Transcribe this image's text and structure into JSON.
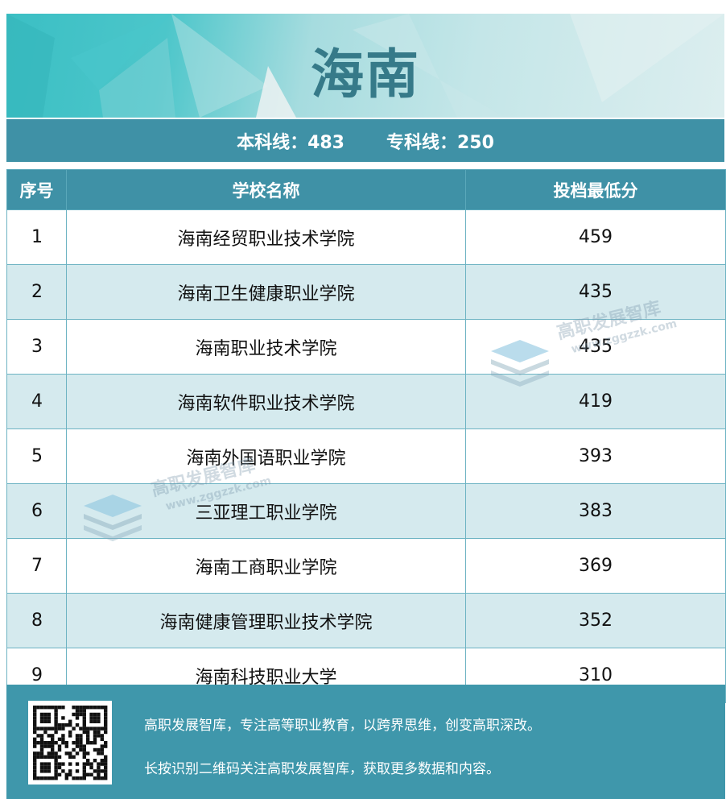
{
  "header": {
    "title": "海南"
  },
  "score_lines": {
    "undergrad": "本科线：483",
    "vocational": "专科线：250"
  },
  "table": {
    "columns": [
      "序号",
      "学校名称",
      "投档最低分"
    ],
    "rows": [
      [
        "1",
        "海南经贸职业技术学院",
        "459"
      ],
      [
        "2",
        "海南卫生健康职业学院",
        "435"
      ],
      [
        "3",
        "海南职业技术学院",
        "435"
      ],
      [
        "4",
        "海南软件职业技术学院",
        "419"
      ],
      [
        "5",
        "海南外国语职业学院",
        "393"
      ],
      [
        "6",
        "三亚理工职业学院",
        "383"
      ],
      [
        "7",
        "海南工商职业学院",
        "369"
      ],
      [
        "8",
        "海南健康管理职业技术学院",
        "352"
      ],
      [
        "9",
        "海南科技职业大学",
        "310"
      ]
    ]
  },
  "watermark": {
    "name": "高职发展智库",
    "url": "www.zggzzk.com"
  },
  "footer": {
    "line1": "高职发展智库，专注高等职业教育，以跨界思维，创变高职深改。",
    "line2": "长按识别二维码关注高职发展智库，获取更多数据和内容。"
  },
  "colors": {
    "accent": "#3f91a6",
    "row_alt": "#d5eaee",
    "title": "#367a89"
  }
}
